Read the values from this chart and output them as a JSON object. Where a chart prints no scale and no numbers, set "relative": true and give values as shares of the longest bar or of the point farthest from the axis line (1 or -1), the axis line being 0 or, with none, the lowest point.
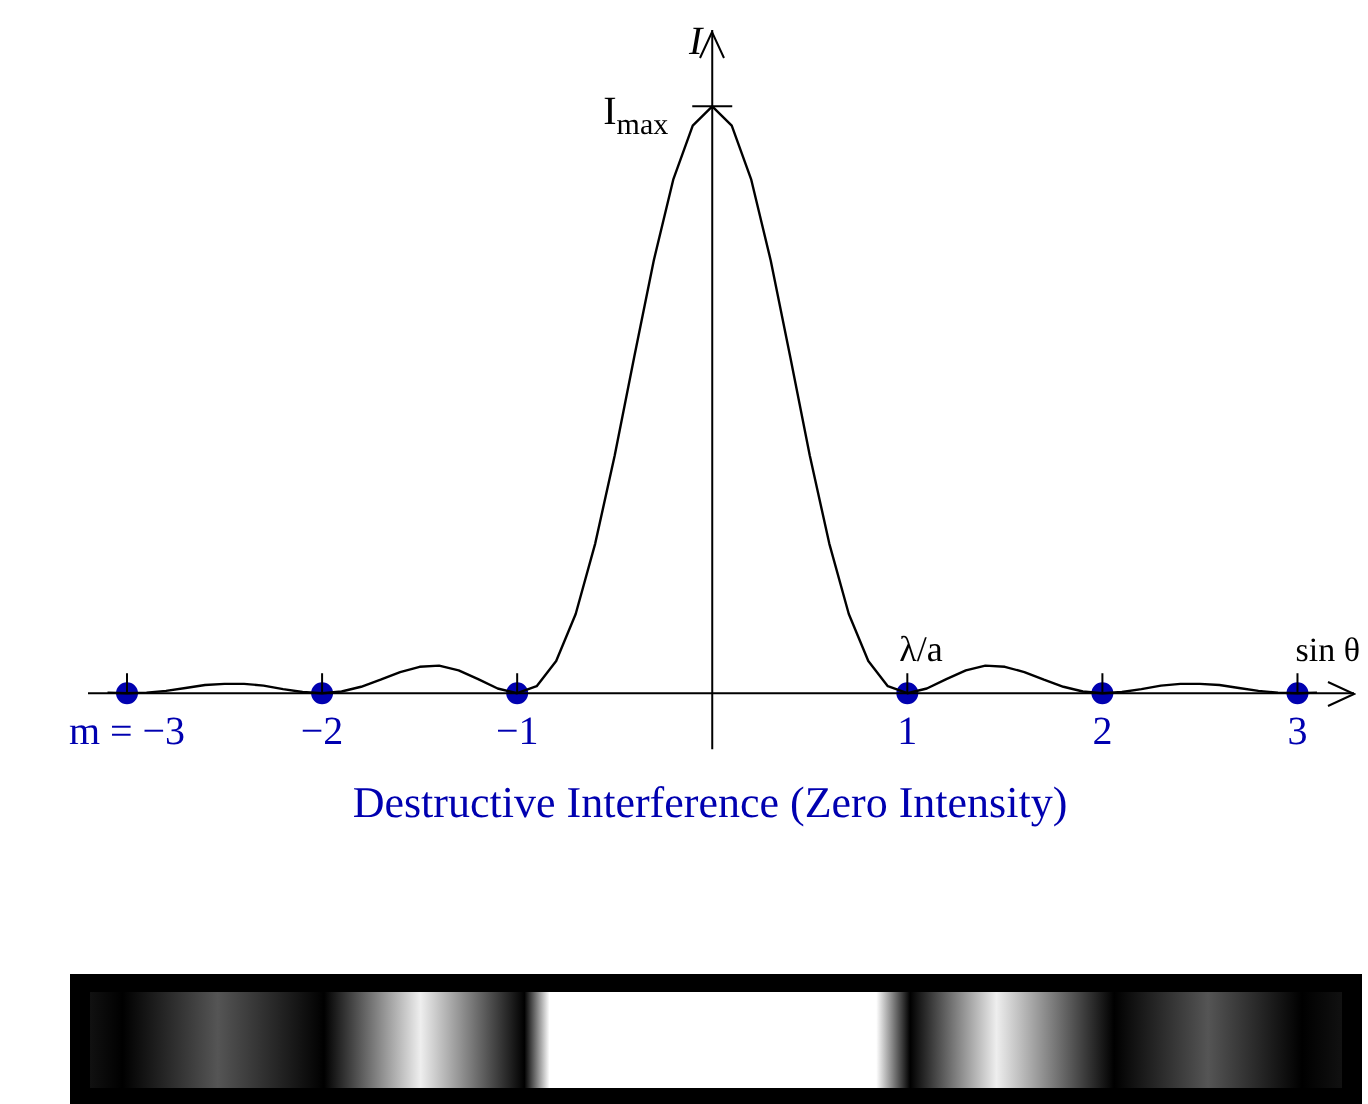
{
  "chart_data": {
    "type": "line",
    "relative": true,
    "xlabel": "sin θ",
    "ylabel": "I",
    "xlim": [
      -3.2,
      3.3
    ],
    "xticks": [
      {
        "value": -3,
        "label": "m = −3"
      },
      {
        "value": -2,
        "label": "−2"
      },
      {
        "value": -1,
        "label": "−1"
      },
      {
        "value": 1,
        "label": "1"
      },
      {
        "value": 2,
        "label": "2"
      },
      {
        "value": 3,
        "label": "3"
      }
    ],
    "series": [
      {
        "color": "#000000",
        "marker": "none",
        "x": [
          -3.1,
          -3.0,
          -2.9,
          -2.8,
          -2.7,
          -2.6,
          -2.5,
          -2.4,
          -2.3,
          -2.2,
          -2.1,
          -2.0,
          -1.9,
          -1.8,
          -1.7,
          -1.6,
          -1.5,
          -1.4,
          -1.3,
          -1.2,
          -1.1,
          -1.0,
          -0.9,
          -0.8,
          -0.7,
          -0.6,
          -0.5,
          -0.4,
          -0.3,
          -0.2,
          -0.1,
          0,
          0.1,
          0.2,
          0.3,
          0.4,
          0.5,
          0.6,
          0.7,
          0.8,
          0.9,
          1.0,
          1.1,
          1.2,
          1.3,
          1.4,
          1.5,
          1.6,
          1.7,
          1.8,
          1.9,
          2.0,
          2.1,
          2.2,
          2.3,
          2.4,
          2.5,
          2.6,
          2.7,
          2.8,
          2.9,
          3.0,
          3.1
        ],
        "values": [
          0.001,
          0,
          0.001,
          0.004,
          0.009,
          0.014,
          0.016,
          0.016,
          0.013,
          0.007,
          0.002,
          0,
          0.003,
          0.011,
          0.023,
          0.036,
          0.045,
          0.047,
          0.039,
          0.024,
          0.008,
          0,
          0.012,
          0.055,
          0.135,
          0.255,
          0.405,
          0.573,
          0.737,
          0.875,
          0.967,
          1,
          0.967,
          0.875,
          0.737,
          0.573,
          0.405,
          0.255,
          0.135,
          0.055,
          0.012,
          0,
          0.008,
          0.024,
          0.039,
          0.047,
          0.045,
          0.036,
          0.023,
          0.011,
          0.003,
          0,
          0.002,
          0.007,
          0.013,
          0.016,
          0.016,
          0.014,
          0.009,
          0.004,
          0.001,
          0,
          0.001
        ]
      },
      {
        "type": "scatter",
        "color": "#0000b0",
        "marker": "circle",
        "x": [
          -3,
          -2,
          -1,
          1,
          2,
          3
        ],
        "values": [
          0,
          0,
          0,
          0,
          0,
          0
        ]
      }
    ],
    "annotations": [
      {
        "text": "I$_{max}$",
        "x": 0,
        "y": 1
      },
      {
        "text": "λ/a",
        "x": 1,
        "y": 0
      },
      "Destructive Interference (Zero Intensity)"
    ]
  }
}
